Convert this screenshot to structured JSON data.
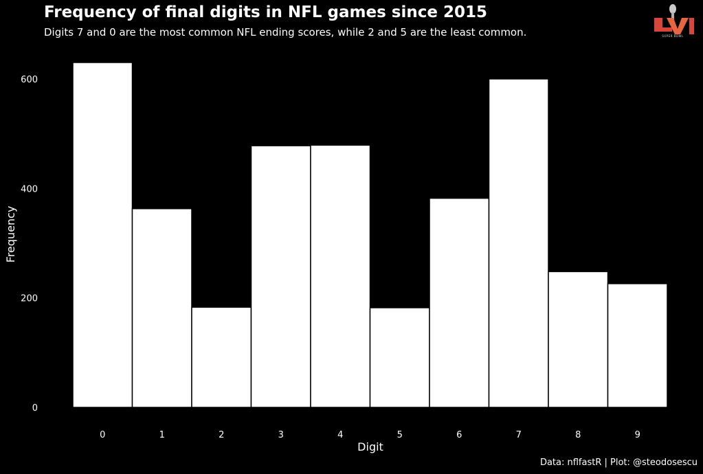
{
  "header": {
    "title": "Frequency of final digits in NFL games since 2015",
    "subtitle": "Digits 7 and 0 are the most common NFL ending scores, while 2 and 5 are the least common."
  },
  "logo": {
    "icon": "super-bowl-lvi-logo",
    "text": "SUPER BOWL"
  },
  "caption": "Data: nflfastR | Plot: @steodosescu",
  "colors": {
    "background": "#000000",
    "bar_fill": "#ffffff",
    "bar_stroke": "#000000",
    "text": "#ffffff"
  },
  "chart_data": {
    "type": "bar",
    "categories": [
      "0",
      "1",
      "2",
      "3",
      "4",
      "5",
      "6",
      "7",
      "8",
      "9"
    ],
    "values": [
      630,
      363,
      183,
      478,
      479,
      182,
      382,
      600,
      248,
      226
    ],
    "xlabel": "Digit",
    "ylabel": "Frequency",
    "ylim": [
      0,
      630
    ],
    "yticks": [
      0,
      200,
      400,
      600
    ],
    "grid": false,
    "legend": "none"
  }
}
